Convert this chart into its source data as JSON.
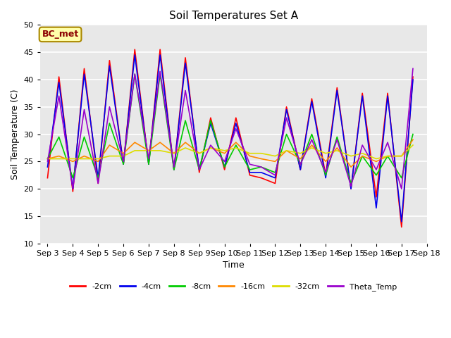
{
  "title": "Soil Temperatures Set A",
  "xlabel": "Time",
  "ylabel": "Soil Temperature (C)",
  "ylim": [
    10,
    50
  ],
  "annotation": "BC_met",
  "plot_bg_color": "#e8e8e8",
  "fig_bg_color": "#ffffff",
  "grid_color": "#ffffff",
  "series": {
    "-2cm": {
      "color": "#ff0000",
      "lw": 1.2
    },
    "-4cm": {
      "color": "#0000ee",
      "lw": 1.2
    },
    "-8cm": {
      "color": "#00cc00",
      "lw": 1.2
    },
    "-16cm": {
      "color": "#ff8800",
      "lw": 1.2
    },
    "-32cm": {
      "color": "#dddd00",
      "lw": 1.2
    },
    "Theta_Temp": {
      "color": "#9900cc",
      "lw": 1.2
    }
  },
  "xtick_labels": [
    "Sep 3",
    "Sep 4",
    "Sep 5",
    "Sep 6",
    "Sep 7",
    "Sep 8",
    "Sep 9",
    "Sep 10",
    "Sep 11",
    "Sep 12",
    "Sep 13",
    "Sep 14",
    "Sep 15",
    "Sep 16",
    "Sep 17",
    "Sep 18"
  ],
  "ytick_positions": [
    10,
    15,
    20,
    25,
    30,
    35,
    40,
    45,
    50
  ],
  "data_2cm": [
    22,
    40.5,
    19.5,
    42,
    21,
    43.5,
    24.5,
    45.5,
    24.5,
    45.5,
    23.5,
    44,
    23,
    33,
    23.5,
    33,
    22.5,
    22,
    21,
    35,
    23.5,
    36.5,
    22.5,
    38.5,
    20,
    37.5,
    18.5,
    37.5,
    13,
    40.5
  ],
  "data_4cm": [
    24,
    39.5,
    20,
    41,
    22,
    42.5,
    24.5,
    44.5,
    24.5,
    44.5,
    23.5,
    43,
    23.5,
    32,
    24,
    32,
    23,
    23,
    22,
    34.5,
    23.5,
    36,
    22,
    38,
    20,
    37,
    16.5,
    37,
    14,
    40
  ],
  "data_8cm": [
    25.5,
    29.5,
    22,
    29.5,
    22,
    32,
    24.5,
    41,
    24.5,
    41,
    23.5,
    32.5,
    23.5,
    32.5,
    24,
    28,
    23.5,
    24,
    23,
    30,
    24.5,
    30,
    22.5,
    29.5,
    21,
    26,
    22.5,
    26,
    22,
    30
  ],
  "data_16cm": [
    25.5,
    26,
    25,
    26,
    25,
    28,
    26.5,
    28.5,
    27,
    28.5,
    26.5,
    28.5,
    26.5,
    27.5,
    26.5,
    28.5,
    26,
    25.5,
    25,
    27,
    25.5,
    28,
    25,
    27.5,
    24,
    26,
    25,
    26,
    26,
    29
  ],
  "data_32cm": [
    25.5,
    25.5,
    25.5,
    25.5,
    25.5,
    26,
    26,
    27,
    27,
    27,
    26.5,
    27.5,
    26.5,
    27.5,
    27,
    27.5,
    26.5,
    26.5,
    26,
    27,
    26.5,
    27.5,
    26.5,
    27,
    26,
    26.5,
    25.5,
    26,
    26,
    28
  ],
  "data_theta": [
    25,
    37,
    20,
    34.5,
    21,
    35,
    25,
    41,
    25.5,
    41.5,
    24,
    38,
    23.5,
    28,
    25,
    31,
    24.5,
    24,
    22.5,
    33,
    24.5,
    29,
    23,
    29,
    20.5,
    28,
    23.5,
    28.5,
    20,
    42
  ]
}
